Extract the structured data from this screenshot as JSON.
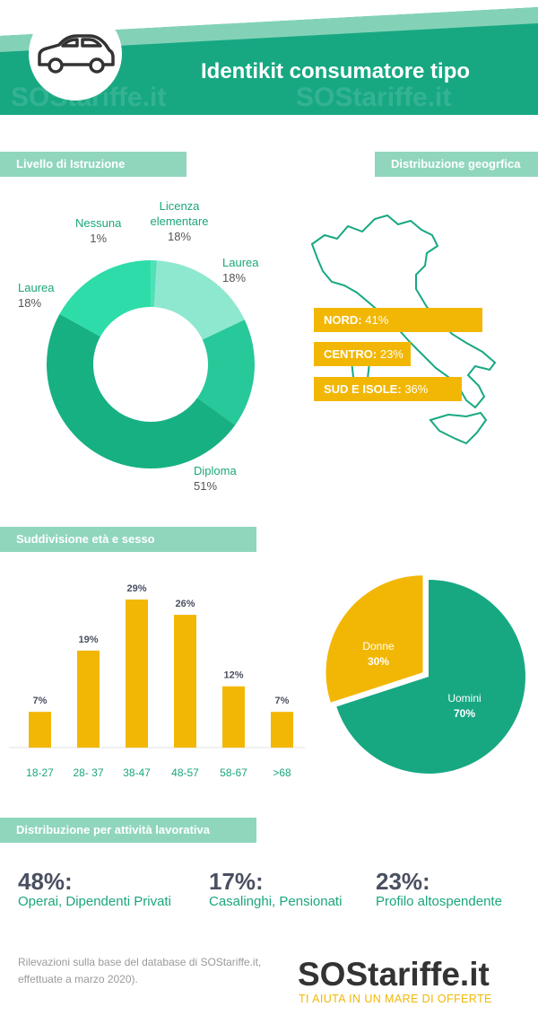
{
  "header": {
    "title": "Identikit consumatore tipo",
    "icon": "car-icon",
    "watermark": "SOStariffe.it"
  },
  "sections": {
    "education": "Livello di Istruzione",
    "geo": "Distribuzione geogrfica",
    "age_sex": "Suddivisione età e sesso",
    "work": "Distribuzione per attività lavorativa"
  },
  "chart_data": [
    {
      "type": "pie",
      "subtype": "donut",
      "title": "Livello di Istruzione",
      "slices": [
        {
          "name": "Laurea",
          "value": 18,
          "label": "18%"
        },
        {
          "name": "Diploma",
          "value": 51,
          "label": "51%"
        },
        {
          "name": "Laurea",
          "value": 18,
          "label": "18%"
        },
        {
          "name": "Nessuna",
          "value": 1,
          "label": "1%"
        },
        {
          "name": "Licenza elementare",
          "value": 18,
          "label": "18%"
        }
      ],
      "colors": [
        "#2edcaa",
        "#17b083",
        "#27c899",
        "#4fe0b8",
        "#8ee8cf"
      ]
    },
    {
      "type": "bar",
      "title": "Suddivisione età e sesso",
      "categories": [
        "18-27",
        "28- 37",
        "38-47",
        "48-57",
        "58-67",
        ">68"
      ],
      "values": [
        7,
        19,
        29,
        26,
        12,
        7
      ],
      "labels": [
        "7%",
        "19%",
        "29%",
        "26%",
        "12%",
        "7%"
      ],
      "ylim": [
        0,
        29
      ],
      "color": "#f2b705"
    },
    {
      "type": "pie",
      "slices": [
        {
          "name": "Uomini",
          "value": 70,
          "label": "70%"
        },
        {
          "name": "Donne",
          "value": 30,
          "label": "30%"
        }
      ],
      "colors": [
        "#17a882",
        "#f2b705"
      ]
    },
    {
      "type": "bar",
      "orientation": "horizontal",
      "title": "Distribuzione geogrfica",
      "bars": [
        {
          "name": "NORD:",
          "value": 41,
          "label": "41%"
        },
        {
          "name": "CENTRO:",
          "value": 23,
          "label": "23%"
        },
        {
          "name": "SUD E ISOLE:",
          "value": 36,
          "label": "36%"
        }
      ],
      "color": "#f2b705"
    }
  ],
  "work": [
    {
      "value": "48%:",
      "desc": "Operai, Dipendenti Privati"
    },
    {
      "value": "17%:",
      "desc": "Casalinghi, Pensionati"
    },
    {
      "value": "23%:",
      "desc": "Profilo altospendente"
    }
  ],
  "footer": {
    "note_line1": "Rilevazioni sulla base del database di SOStariffe.it,",
    "note_line2": "effettuate a marzo 2020).",
    "logo_text": "SOStariffe.it",
    "tagline": "TI AIUTA IN UN MARE DI OFFERTE"
  },
  "colors": {
    "green": "#17a882",
    "light_green": "#8fd6bd",
    "yellow": "#f2b705",
    "dark_text": "#4a5061"
  }
}
